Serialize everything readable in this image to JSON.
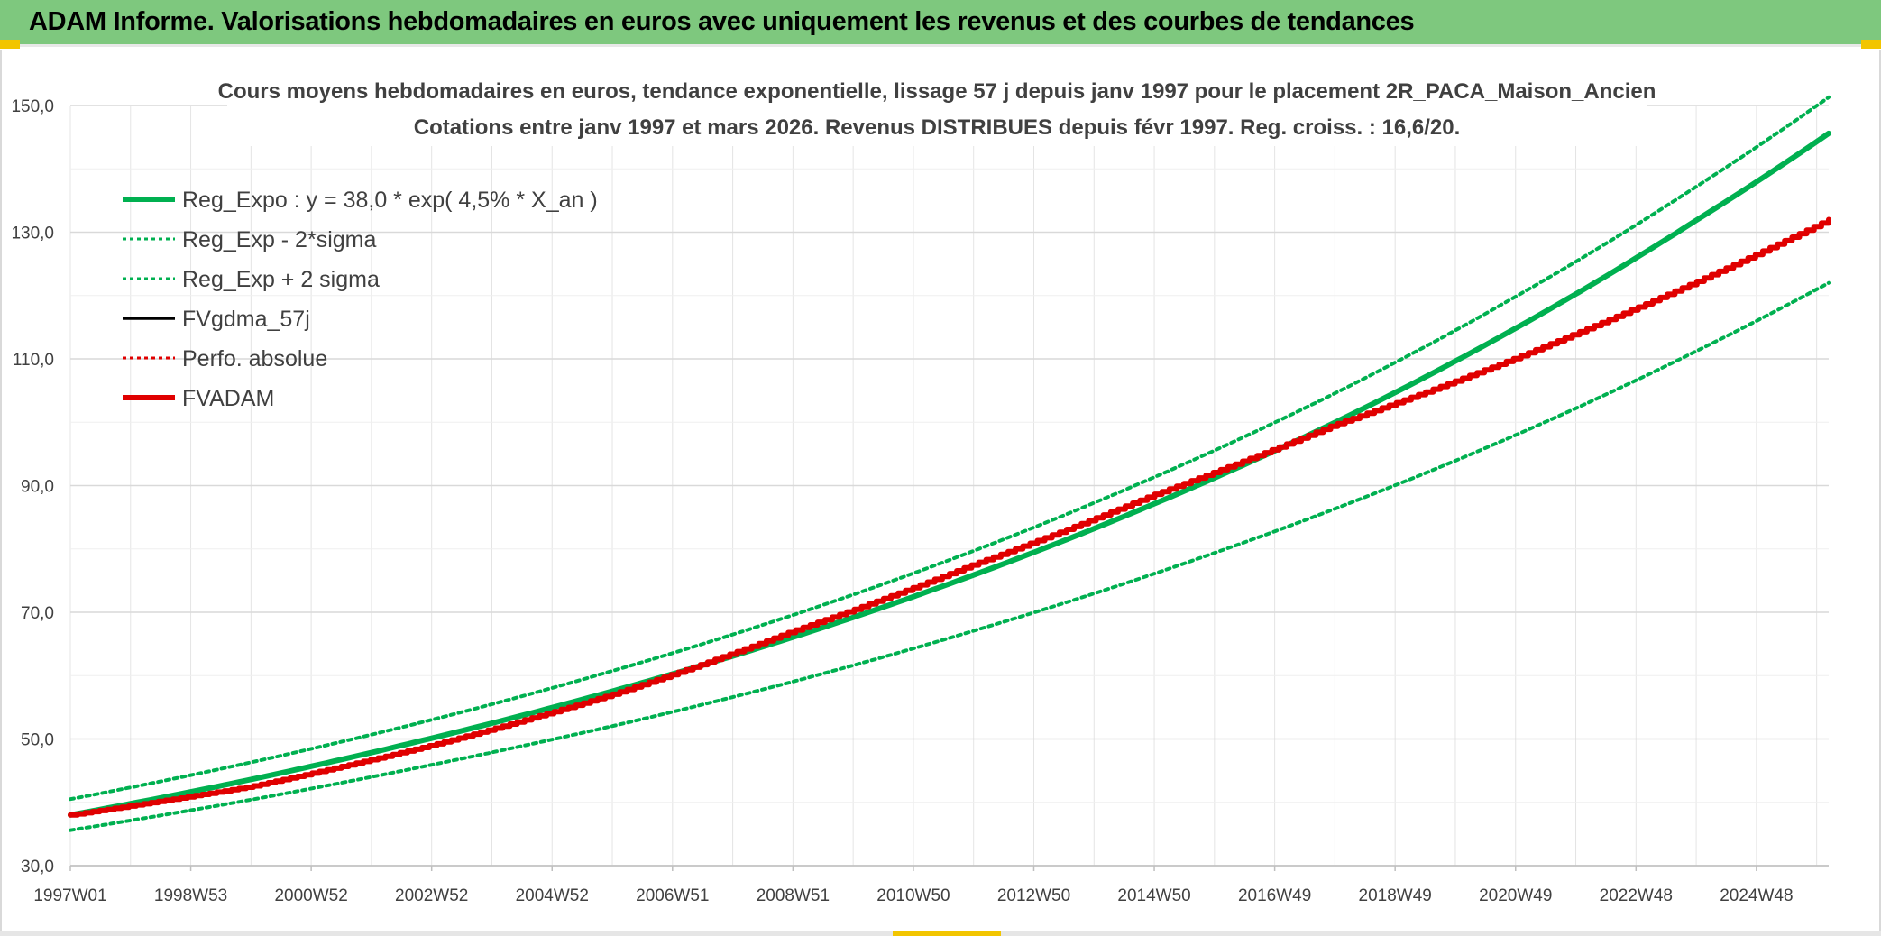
{
  "header": {
    "title": "ADAM Informe. Valorisations hebdomadaires en euros avec uniquement les revenus et des courbes de tendances"
  },
  "colors": {
    "green": "#00b050",
    "red": "#e00000",
    "black": "#000000",
    "grid": "#d9d9d9",
    "header_bg": "#7ec87e"
  },
  "chart_data": {
    "type": "line",
    "title_lines": [
      "Cours moyens hebdomadaires en euros, tendance exponentielle, lissage 57 j depuis janv 1997 pour le placement 2R_PACA_Maison_Ancien",
      "Cotations entre janv 1997 et mars 2026. Revenus DISTRIBUES depuis févr 1997. Reg. croiss. : 16,6/20."
    ],
    "x_tick_labels": [
      "1997W01",
      "1998W53",
      "2000W52",
      "2002W52",
      "2004W52",
      "2006W51",
      "2008W51",
      "2010W50",
      "2012W50",
      "2014W50",
      "2016W49",
      "2018W49",
      "2020W49",
      "2022W48",
      "2024W48"
    ],
    "y_tick_labels": [
      "30,0",
      "50,0",
      "70,0",
      "90,0",
      "110,0",
      "130,0",
      "150,0"
    ],
    "ylim": [
      30,
      150
    ],
    "xlim": [
      1997.0,
      2026.25
    ],
    "legend": [
      {
        "label": "Reg_Expo : y = 38,0 * exp( 4,5% *  X_an )",
        "color": "#00b050",
        "style": "solid-thick"
      },
      {
        "label": "Reg_Exp - 2*sigma",
        "color": "#00b050",
        "style": "dotted"
      },
      {
        "label": "Reg_Exp + 2 sigma",
        "color": "#00b050",
        "style": "dotted"
      },
      {
        "label": "FVgdma_57j",
        "color": "#000000",
        "style": "solid"
      },
      {
        "label": "Perfo. absolue",
        "color": "#e00000",
        "style": "dotted"
      },
      {
        "label": "FVADAM",
        "color": "#e00000",
        "style": "solid-thick"
      }
    ],
    "series": [
      {
        "name": "Reg_Expo",
        "x": [
          1997,
          2000,
          2003,
          2006,
          2009,
          2012,
          2015,
          2018,
          2021,
          2024,
          2026.25
        ],
        "values": [
          38.0,
          43.6,
          50.1,
          57.5,
          66.0,
          75.8,
          87.0,
          99.8,
          114.6,
          131.6,
          145.6
        ]
      },
      {
        "name": "Reg_Exp - 2*sigma",
        "x": [
          1997,
          2000,
          2003,
          2006,
          2009,
          2012,
          2015,
          2018,
          2021,
          2024,
          2026.25
        ],
        "values": [
          35.6,
          40.4,
          45.9,
          52.0,
          59.0,
          67.0,
          76.0,
          86.2,
          97.8,
          111.0,
          122.0
        ]
      },
      {
        "name": "Reg_Exp + 2 sigma",
        "x": [
          1997,
          2000,
          2003,
          2006,
          2009,
          2012,
          2015,
          2018,
          2021,
          2024,
          2026.25
        ],
        "values": [
          40.5,
          46.3,
          53.0,
          60.7,
          69.5,
          79.6,
          91.2,
          104.4,
          119.6,
          136.9,
          151.3
        ]
      },
      {
        "name": "FVADAM",
        "x": [
          1997,
          2000,
          2003,
          2006,
          2009,
          2012,
          2015,
          2018,
          2021,
          2024,
          2026.25
        ],
        "values": [
          38.0,
          42.5,
          49.0,
          57.0,
          67.0,
          77.5,
          88.5,
          99.5,
          110.0,
          122.0,
          132.0
        ]
      }
    ]
  }
}
